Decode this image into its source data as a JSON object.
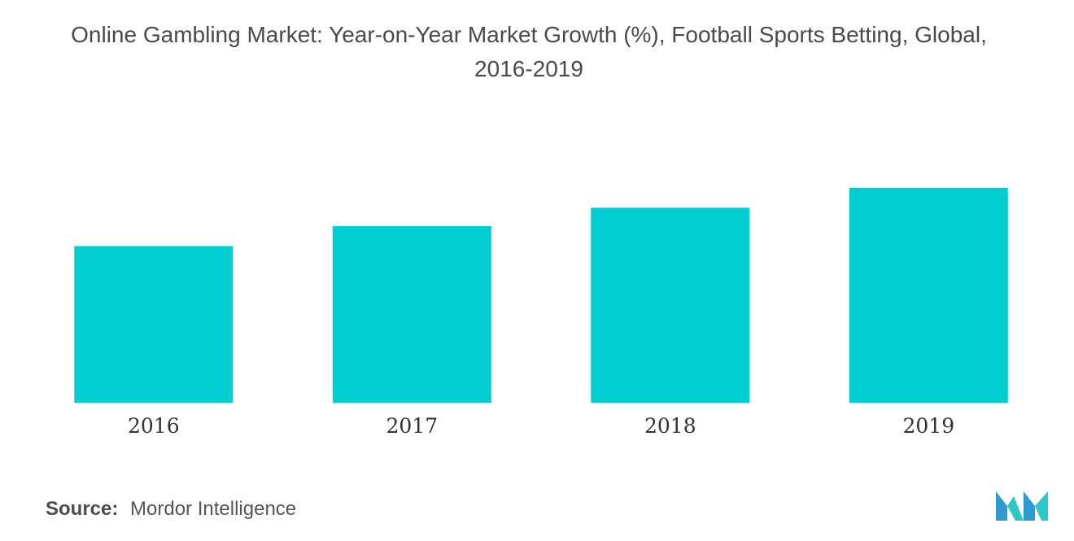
{
  "chart_data": {
    "type": "bar",
    "title_lines": [
      "Online Gambling Market: Year-on-Year Market Growth (%), Football Sports Betting, Global,",
      "2016-2019"
    ],
    "categories": [
      "2016",
      "2017",
      "2018",
      "2019"
    ],
    "values": [
      5.5,
      6.2,
      6.85,
      7.55
    ],
    "ylim": [
      0,
      10
    ],
    "grid": false,
    "legend": "none",
    "bar_color": "#00CED1"
  },
  "source": {
    "label": "Source:",
    "text": "Mordor Intelligence"
  },
  "logo": {
    "icon": "mordor-intelligence-logo",
    "colors": [
      "#2E9ACF",
      "#2BC8C9"
    ]
  }
}
